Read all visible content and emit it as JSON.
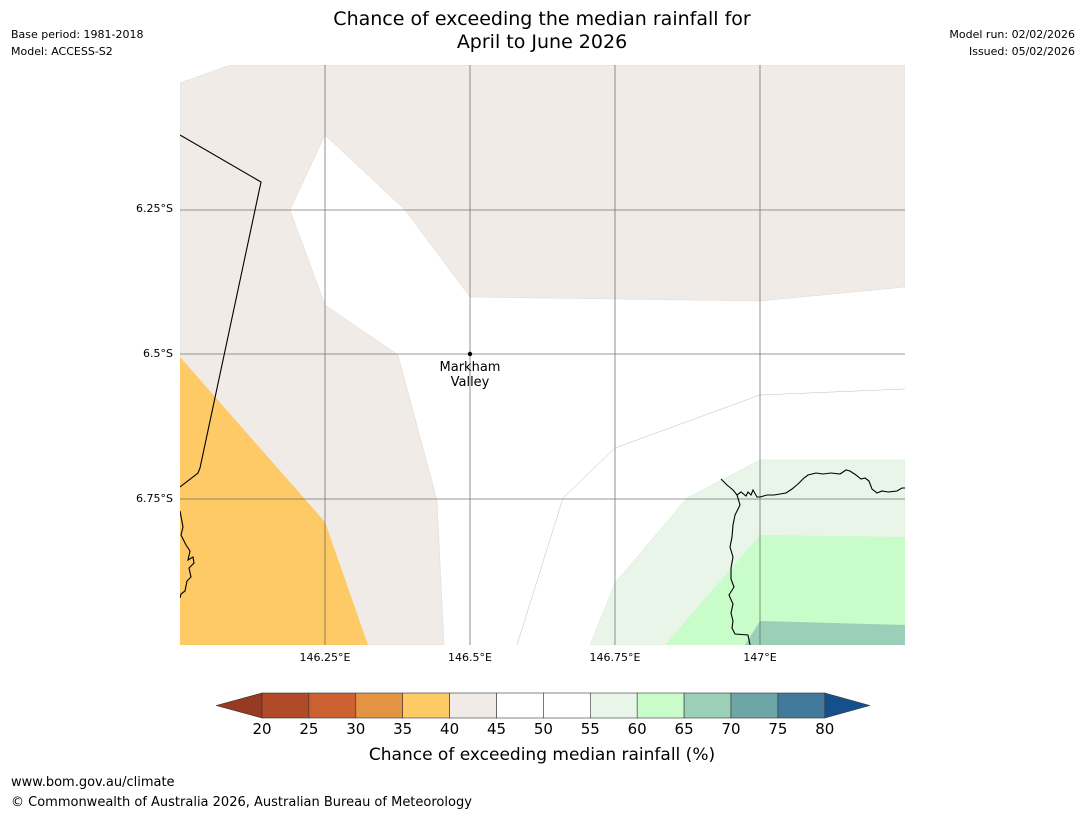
{
  "title": {
    "line1": "Chance of exceeding the median rainfall for",
    "line2": "April to June 2026"
  },
  "meta_left": {
    "base_period": "Base period: 1981-2018",
    "model": "Model: ACCESS-S2"
  },
  "meta_right": {
    "model_run": "Model run: 02/02/2026",
    "issued": "Issued: 05/02/2026"
  },
  "map": {
    "lat_labels": [
      "6.25°S",
      "6.5°S",
      "6.75°S"
    ],
    "lon_labels": [
      "146.25°E",
      "146.5°E",
      "146.75°E",
      "147°E"
    ],
    "place": {
      "name_line1": "Markham",
      "name_line2": "Valley"
    },
    "colors": {
      "band_35_40": "#fdca65",
      "band_40_45": "#f0ebe6",
      "band_45_55": "#ffffff",
      "band_55_60": "#e9f5e9",
      "band_60_65": "#c8fcc8",
      "band_65_70": "#9ccfb8",
      "gridline": "#555555",
      "coast": "#000000"
    }
  },
  "legend": {
    "title": "Chance of exceeding median rainfall (%)",
    "ticks": [
      "20",
      "25",
      "30",
      "35",
      "40",
      "45",
      "50",
      "55",
      "60",
      "65",
      "70",
      "75",
      "80"
    ],
    "low_extend_color": "#963a22",
    "high_extend_color": "#15508d",
    "colors": [
      "#b14a26",
      "#cb6130",
      "#e29443",
      "#fdca65",
      "#f0ebe6",
      "#ffffff",
      "#ffffff",
      "#e9f5e9",
      "#c8fcc8",
      "#9ccfb8",
      "#6ea5a6",
      "#417a9a"
    ]
  },
  "footer": {
    "url": "www.bom.gov.au/climate",
    "copyright": "© Commonwealth of Australia 2026, Australian Bureau of Meteorology"
  }
}
